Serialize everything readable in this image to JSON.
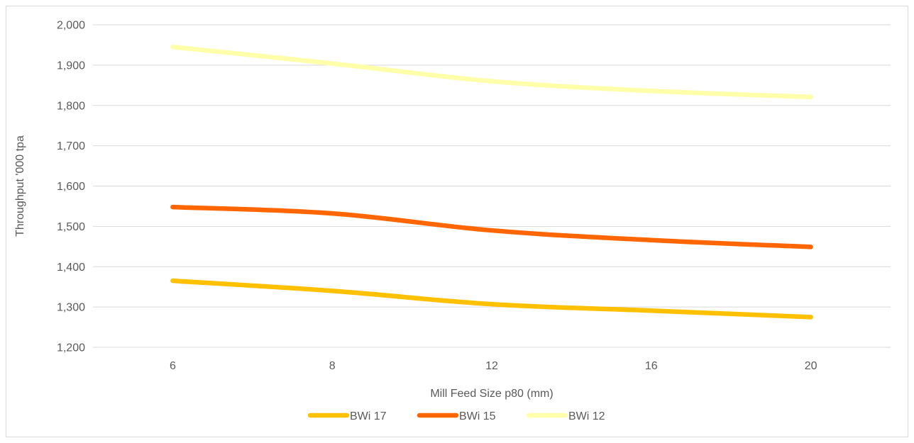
{
  "chart_data": {
    "type": "line",
    "title": "",
    "xlabel": "Mill Feed Size p80 (mm)",
    "ylabel": "Throughput '000 tpa",
    "categories": [
      "6",
      "8",
      "12",
      "16",
      "20"
    ],
    "ylim": [
      1200,
      2000
    ],
    "ytick_step": 100,
    "yticks": [
      "1,200",
      "1,300",
      "1,400",
      "1,500",
      "1,600",
      "1,700",
      "1,800",
      "1,900",
      "2,000"
    ],
    "grid": "horizontal",
    "legend_position": "bottom",
    "smooth": true,
    "series": [
      {
        "name": "BWi 17",
        "color": "#FFC000",
        "values": [
          1365,
          1340,
          1307,
          1291,
          1275
        ]
      },
      {
        "name": "BWi 15",
        "color": "#FF6600",
        "values": [
          1548,
          1532,
          1490,
          1466,
          1449
        ]
      },
      {
        "name": "BWi 12",
        "color": "#FFFFAA",
        "values": [
          1945,
          1904,
          1860,
          1836,
          1821
        ]
      }
    ]
  }
}
